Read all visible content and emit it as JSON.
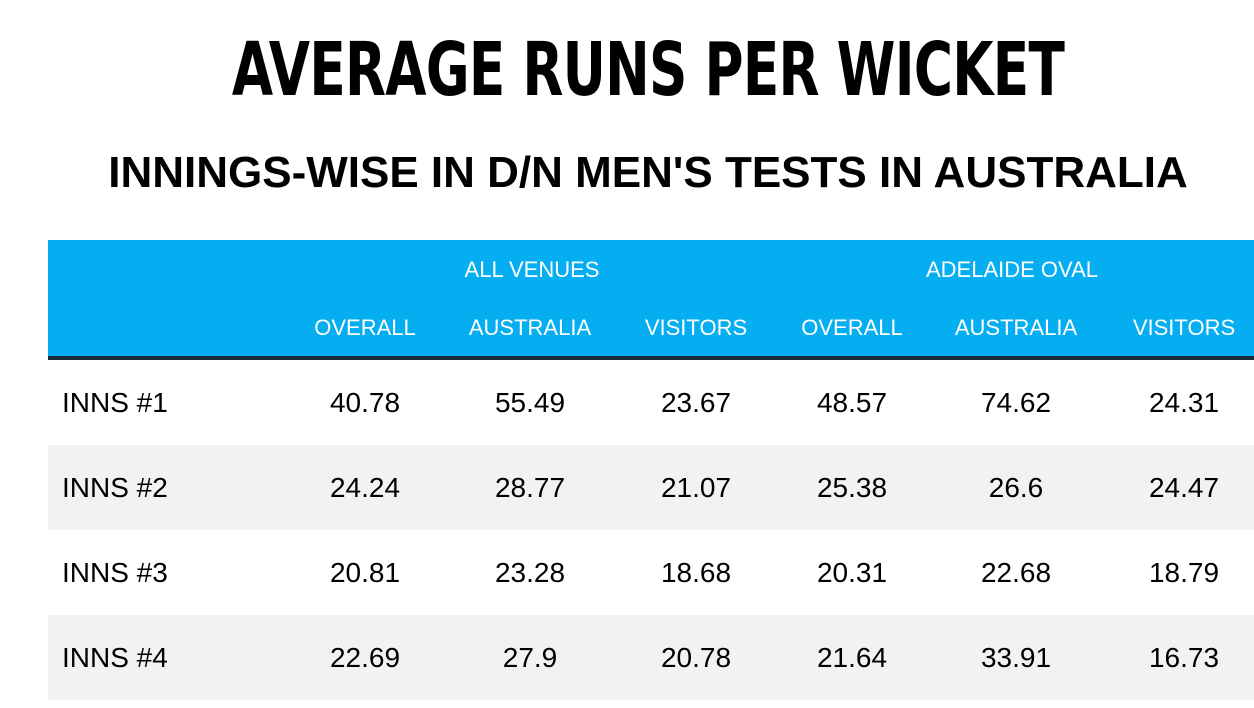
{
  "chart_data": {
    "type": "table",
    "title": "AVERAGE RUNS PER WICKET",
    "subtitle": "INNINGS-WISE IN D/N MEN'S TESTS IN AUSTRALIA",
    "groups": [
      "ALL VENUES",
      "ADELAIDE OVAL"
    ],
    "columns": [
      "OVERALL",
      "AUSTRALIA",
      "VISITORS",
      "OVERALL",
      "AUSTRALIA",
      "VISITORS"
    ],
    "rows": [
      {
        "label": "INNS #1",
        "values": [
          "40.78",
          "55.49",
          "23.67",
          "48.57",
          "74.62",
          "24.31"
        ]
      },
      {
        "label": "INNS #2",
        "values": [
          "24.24",
          "28.77",
          "21.07",
          "25.38",
          "26.6",
          "24.47"
        ]
      },
      {
        "label": "INNS #3",
        "values": [
          "20.81",
          "23.28",
          "18.68",
          "20.31",
          "22.68",
          "18.79"
        ]
      },
      {
        "label": "INNS #4",
        "values": [
          "22.69",
          "27.9",
          "20.78",
          "21.64",
          "33.91",
          "16.73"
        ]
      }
    ]
  },
  "colors": {
    "header_background": "#05aef0",
    "header_text": "#ffffff",
    "header_rule": "#1a2a38",
    "shaded_row": "#f2f2f2"
  }
}
